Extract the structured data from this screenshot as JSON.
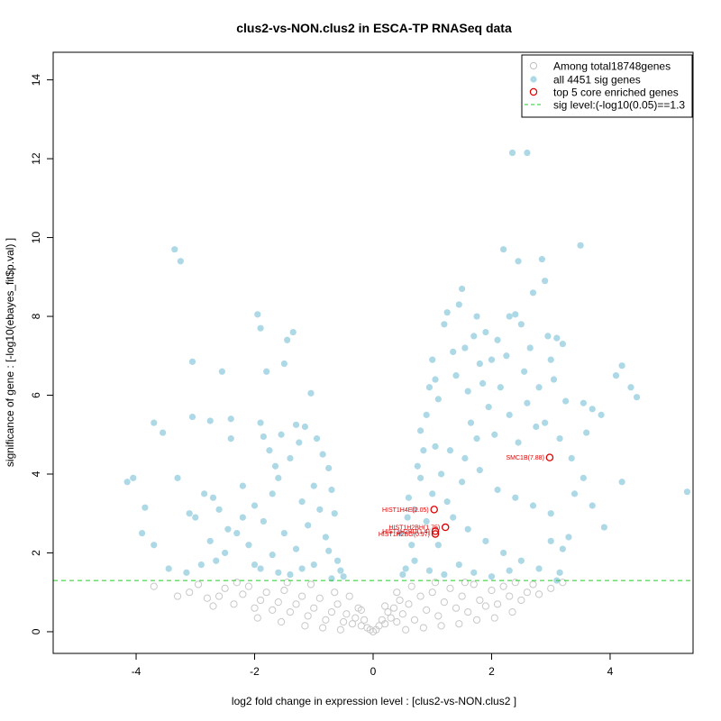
{
  "chart_data": {
    "type": "scatter",
    "title": "clus2-vs-NON.clus2 in ESCA-TP RNASeq data",
    "xlabel": "log2 fold change in expression level : [clus2-vs-NON.clus2 ]",
    "ylabel": "significance of gene : [-log10(ebayes_fit$p.val) ]",
    "xlim": [
      -5.4,
      5.4
    ],
    "ylim": [
      -0.55,
      14.7
    ],
    "xticks": [
      -4,
      -2,
      0,
      2,
      4
    ],
    "yticks": [
      0,
      2,
      4,
      6,
      8,
      10,
      12,
      14
    ],
    "xtick_labels": [
      "-4",
      "-2",
      "0",
      "2",
      "4"
    ],
    "ytick_labels": [
      "0",
      "2",
      "4",
      "6",
      "8",
      "10",
      "12",
      "14"
    ],
    "sig_level": 1.3,
    "legend_position": "top-right",
    "legend": [
      {
        "label": "Among total18748genes",
        "symbol": "open-circle",
        "color": "#bfbfbf"
      },
      {
        "label": "all 4451 sig genes",
        "symbol": "filled-circle",
        "color": "#add8e6"
      },
      {
        "label": "top 5 core enriched genes",
        "symbol": "open-circle",
        "color": "#dd0000"
      },
      {
        "label": "sig level:(-log10(0.05)==1.3",
        "symbol": "dashed-line",
        "color": "#00cc00"
      }
    ],
    "colors": {
      "nonsig": "#c8c8c8",
      "sig": "#add8e6",
      "core": "#dd0000",
      "sigline": "#22cc22"
    },
    "sig_points": [
      [
        -4.15,
        3.8
      ],
      [
        -4.05,
        3.9
      ],
      [
        -3.85,
        3.15
      ],
      [
        -3.9,
        2.5
      ],
      [
        -3.7,
        2.2
      ],
      [
        -3.55,
        5.05
      ],
      [
        -3.7,
        5.3
      ],
      [
        -3.45,
        1.6
      ],
      [
        -3.35,
        9.7
      ],
      [
        -3.25,
        9.4
      ],
      [
        -3.05,
        6.85
      ],
      [
        -3.05,
        5.45
      ],
      [
        -3.3,
        3.9
      ],
      [
        -3.1,
        3.0
      ],
      [
        -3.0,
        2.9
      ],
      [
        -2.85,
        3.5
      ],
      [
        -2.75,
        5.35
      ],
      [
        -2.7,
        3.4
      ],
      [
        -2.6,
        3.1
      ],
      [
        -2.55,
        6.6
      ],
      [
        -2.4,
        5.4
      ],
      [
        -2.4,
        4.9
      ],
      [
        -2.3,
        2.5
      ],
      [
        -2.2,
        3.7
      ],
      [
        -2.1,
        2.2
      ],
      [
        -2.5,
        2.0
      ],
      [
        -2.65,
        1.8
      ],
      [
        -2.9,
        1.7
      ],
      [
        -3.15,
        1.5
      ],
      [
        -2.0,
        1.7
      ],
      [
        -1.95,
        8.05
      ],
      [
        -1.9,
        7.7
      ],
      [
        -1.8,
        6.6
      ],
      [
        -1.9,
        5.3
      ],
      [
        -1.85,
        4.95
      ],
      [
        -1.75,
        4.6
      ],
      [
        -1.65,
        4.2
      ],
      [
        -1.55,
        5.0
      ],
      [
        -1.5,
        6.8
      ],
      [
        -1.45,
        7.4
      ],
      [
        -1.35,
        7.6
      ],
      [
        -1.3,
        5.25
      ],
      [
        -1.25,
        4.8
      ],
      [
        -1.15,
        5.2
      ],
      [
        -1.05,
        6.05
      ],
      [
        -0.95,
        4.9
      ],
      [
        -0.85,
        4.5
      ],
      [
        -0.75,
        4.15
      ],
      [
        -0.7,
        3.6
      ],
      [
        -0.65,
        3.0
      ],
      [
        -1.4,
        4.4
      ],
      [
        -1.6,
        3.9
      ],
      [
        -1.7,
        3.5
      ],
      [
        -2.0,
        3.2
      ],
      [
        -2.2,
        2.9
      ],
      [
        -1.85,
        2.8
      ],
      [
        -2.45,
        2.6
      ],
      [
        -2.75,
        2.3
      ],
      [
        -1.2,
        3.3
      ],
      [
        -1.0,
        3.7
      ],
      [
        -0.9,
        3.1
      ],
      [
        -0.8,
        2.4
      ],
      [
        -1.1,
        2.7
      ],
      [
        -1.5,
        2.5
      ],
      [
        -1.3,
        2.1
      ],
      [
        -1.7,
        1.95
      ],
      [
        -1.9,
        1.6
      ],
      [
        -0.75,
        2.05
      ],
      [
        -0.6,
        1.8
      ],
      [
        -0.55,
        1.55
      ],
      [
        -0.5,
        1.4
      ],
      [
        -1.0,
        1.7
      ],
      [
        -1.2,
        1.6
      ],
      [
        -1.4,
        1.45
      ],
      [
        -1.6,
        1.5
      ],
      [
        -0.7,
        1.35
      ],
      [
        0.55,
        1.6
      ],
      [
        0.65,
        2.2
      ],
      [
        0.7,
        3.1
      ],
      [
        0.75,
        4.2
      ],
      [
        0.8,
        5.1
      ],
      [
        0.9,
        5.5
      ],
      [
        0.95,
        6.2
      ],
      [
        1.0,
        6.9
      ],
      [
        1.05,
        6.4
      ],
      [
        1.1,
        5.9
      ],
      [
        0.85,
        4.6
      ],
      [
        0.6,
        3.4
      ],
      [
        1.2,
        7.8
      ],
      [
        1.25,
        8.1
      ],
      [
        1.35,
        7.1
      ],
      [
        1.4,
        6.5
      ],
      [
        1.45,
        8.3
      ],
      [
        1.5,
        8.7
      ],
      [
        1.55,
        7.2
      ],
      [
        1.6,
        6.1
      ],
      [
        1.65,
        5.3
      ],
      [
        1.7,
        7.5
      ],
      [
        1.75,
        8.0
      ],
      [
        1.8,
        6.8
      ],
      [
        1.85,
        6.3
      ],
      [
        1.9,
        7.6
      ],
      [
        1.95,
        5.7
      ],
      [
        2.0,
        6.9
      ],
      [
        2.1,
        7.4
      ],
      [
        2.15,
        6.2
      ],
      [
        2.2,
        9.7
      ],
      [
        2.25,
        7.0
      ],
      [
        2.3,
        8.0
      ],
      [
        2.35,
        12.15
      ],
      [
        2.4,
        8.05
      ],
      [
        2.45,
        9.4
      ],
      [
        2.5,
        7.8
      ],
      [
        2.55,
        6.6
      ],
      [
        2.6,
        12.15
      ],
      [
        2.65,
        7.2
      ],
      [
        2.7,
        8.6
      ],
      [
        2.8,
        6.2
      ],
      [
        2.85,
        9.45
      ],
      [
        2.9,
        8.9
      ],
      [
        2.95,
        7.5
      ],
      [
        3.0,
        6.9
      ],
      [
        3.05,
        6.4
      ],
      [
        3.1,
        7.45
      ],
      [
        3.2,
        7.3
      ],
      [
        3.25,
        5.85
      ],
      [
        3.5,
        9.8
      ],
      [
        3.55,
        5.8
      ],
      [
        3.6,
        5.05
      ],
      [
        3.7,
        5.65
      ],
      [
        3.85,
        5.5
      ],
      [
        4.1,
        6.5
      ],
      [
        4.2,
        6.75
      ],
      [
        4.35,
        6.2
      ],
      [
        4.45,
        5.95
      ],
      [
        4.2,
        3.8
      ],
      [
        3.9,
        2.65
      ],
      [
        5.3,
        3.55
      ],
      [
        3.55,
        3.9
      ],
      [
        3.7,
        3.2
      ],
      [
        3.3,
        2.4
      ],
      [
        3.2,
        2.1
      ],
      [
        3.15,
        1.5
      ],
      [
        3.1,
        1.3
      ],
      [
        3.4,
        3.5
      ],
      [
        2.75,
        5.2
      ],
      [
        2.45,
        4.8
      ],
      [
        1.3,
        4.6
      ],
      [
        1.15,
        4.0
      ],
      [
        1.5,
        3.8
      ],
      [
        1.8,
        4.1
      ],
      [
        2.1,
        3.6
      ],
      [
        2.4,
        3.4
      ],
      [
        2.7,
        3.2
      ],
      [
        3.0,
        3.0
      ],
      [
        0.9,
        2.8
      ],
      [
        1.1,
        2.2
      ],
      [
        1.35,
        2.9
      ],
      [
        1.6,
        2.6
      ],
      [
        1.9,
        2.3
      ],
      [
        2.2,
        2.0
      ],
      [
        2.5,
        1.8
      ],
      [
        2.8,
        1.6
      ],
      [
        3.0,
        2.3
      ],
      [
        0.7,
        1.8
      ],
      [
        0.95,
        1.55
      ],
      [
        1.2,
        1.45
      ],
      [
        1.45,
        1.7
      ],
      [
        1.7,
        1.5
      ],
      [
        2.0,
        1.4
      ],
      [
        2.3,
        1.55
      ],
      [
        0.5,
        1.45
      ],
      [
        0.45,
        2.5
      ],
      [
        0.58,
        2.9
      ],
      [
        1.0,
        3.5
      ],
      [
        1.25,
        3.3
      ],
      [
        1.55,
        4.4
      ],
      [
        1.75,
        4.9
      ],
      [
        2.05,
        5.0
      ],
      [
        2.3,
        5.5
      ],
      [
        2.6,
        5.8
      ],
      [
        2.9,
        5.3
      ],
      [
        3.15,
        4.9
      ],
      [
        3.35,
        4.4
      ],
      [
        1.05,
        4.7
      ],
      [
        0.8,
        3.9
      ]
    ],
    "nonsig_points": [
      [
        -3.7,
        1.15
      ],
      [
        -3.3,
        0.9
      ],
      [
        -3.1,
        1.0
      ],
      [
        -2.95,
        1.2
      ],
      [
        -2.8,
        0.85
      ],
      [
        -2.6,
        0.9
      ],
      [
        -2.5,
        1.1
      ],
      [
        -2.35,
        0.7
      ],
      [
        -2.2,
        0.95
      ],
      [
        -2.1,
        1.15
      ],
      [
        -2.0,
        0.6
      ],
      [
        -1.9,
        0.8
      ],
      [
        -1.8,
        1.0
      ],
      [
        -1.7,
        0.55
      ],
      [
        -1.6,
        0.75
      ],
      [
        -1.5,
        1.05
      ],
      [
        -1.4,
        0.5
      ],
      [
        -1.3,
        0.7
      ],
      [
        -1.2,
        0.9
      ],
      [
        -1.1,
        0.4
      ],
      [
        -1.0,
        0.6
      ],
      [
        -0.9,
        0.85
      ],
      [
        -0.8,
        0.3
      ],
      [
        -0.7,
        0.5
      ],
      [
        -0.6,
        0.7
      ],
      [
        -0.5,
        0.25
      ],
      [
        -0.45,
        0.45
      ],
      [
        -0.35,
        0.2
      ],
      [
        -0.3,
        0.35
      ],
      [
        -0.25,
        0.6
      ],
      [
        -0.2,
        0.15
      ],
      [
        -0.15,
        0.3
      ],
      [
        -0.1,
        0.1
      ],
      [
        -0.05,
        0.05
      ],
      [
        0.0,
        0.0
      ],
      [
        0.05,
        0.05
      ],
      [
        0.1,
        0.15
      ],
      [
        0.15,
        0.3
      ],
      [
        0.2,
        0.2
      ],
      [
        0.25,
        0.5
      ],
      [
        0.3,
        0.35
      ],
      [
        0.35,
        0.6
      ],
      [
        0.4,
        0.25
      ],
      [
        0.45,
        0.8
      ],
      [
        0.5,
        0.45
      ],
      [
        0.6,
        0.7
      ],
      [
        0.7,
        0.3
      ],
      [
        0.8,
        0.9
      ],
      [
        0.9,
        0.55
      ],
      [
        1.0,
        1.0
      ],
      [
        1.1,
        0.4
      ],
      [
        1.2,
        0.75
      ],
      [
        1.3,
        1.1
      ],
      [
        1.4,
        0.6
      ],
      [
        1.5,
        0.9
      ],
      [
        1.6,
        0.5
      ],
      [
        1.7,
        1.2
      ],
      [
        1.8,
        0.8
      ],
      [
        1.9,
        0.65
      ],
      [
        2.0,
        1.05
      ],
      [
        2.1,
        0.7
      ],
      [
        2.2,
        1.15
      ],
      [
        2.3,
        0.9
      ],
      [
        2.4,
        1.25
      ],
      [
        2.5,
        0.8
      ],
      [
        2.6,
        1.0
      ],
      [
        2.7,
        1.2
      ],
      [
        2.8,
        0.95
      ],
      [
        3.0,
        1.1
      ],
      [
        3.2,
        1.25
      ],
      [
        -2.7,
        0.65
      ],
      [
        -2.3,
        1.25
      ],
      [
        -1.95,
        0.35
      ],
      [
        -1.55,
        0.25
      ],
      [
        -1.15,
        0.15
      ],
      [
        -0.85,
        0.1
      ],
      [
        -0.55,
        0.05
      ],
      [
        0.55,
        0.05
      ],
      [
        0.85,
        0.1
      ],
      [
        1.15,
        0.15
      ],
      [
        1.45,
        0.2
      ],
      [
        1.75,
        0.3
      ],
      [
        2.05,
        0.35
      ],
      [
        2.35,
        0.5
      ],
      [
        -1.45,
        1.25
      ],
      [
        -1.05,
        1.2
      ],
      [
        -0.65,
        1.0
      ],
      [
        0.65,
        1.15
      ],
      [
        1.05,
        1.25
      ],
      [
        1.55,
        1.25
      ],
      [
        -0.4,
        0.9
      ],
      [
        0.4,
        1.0
      ],
      [
        -0.2,
        0.55
      ],
      [
        0.2,
        0.65
      ]
    ],
    "core_genes": [
      {
        "label": "SMC1B(7.88)",
        "x": 2.98,
        "y": 4.42
      },
      {
        "label": "HIST1H4E(2.05)",
        "x": 1.03,
        "y": 3.1
      },
      {
        "label": "HIST1H2BH(1.75)",
        "x": 1.22,
        "y": 2.65
      },
      {
        "label": "HIST1H2BD(1.4)",
        "x": 1.05,
        "y": 2.55
      },
      {
        "label": "HIST1H2BG(0.97)",
        "x": 1.05,
        "y": 2.48
      }
    ]
  }
}
